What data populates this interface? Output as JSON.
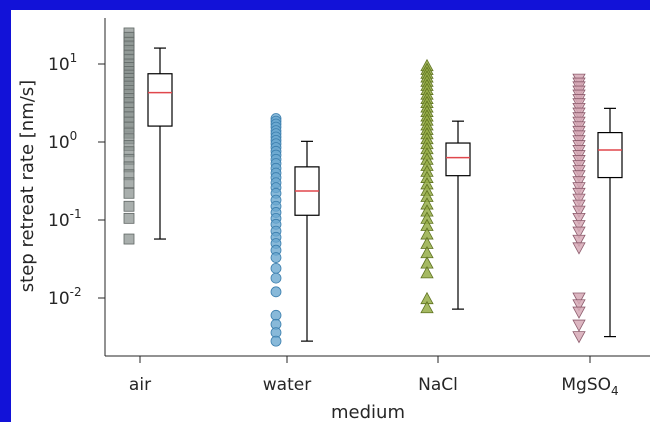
{
  "colors": {
    "frame": "#1212d8",
    "axis": "#262626",
    "median": "#e0474c",
    "air": "#8c9491",
    "water": "#6aa7cf",
    "nacl": "#95ad47",
    "mgso4": "#d6a9b6"
  },
  "chart_data": {
    "type": "box",
    "xlabel": "medium",
    "ylabel": "step retreat rate [nm/s]",
    "yscale": "log",
    "ylim": [
      0.002,
      40
    ],
    "y_ticks": [
      {
        "value": 0.01,
        "base": "10",
        "exp": "-2"
      },
      {
        "value": 0.1,
        "base": "10",
        "exp": "-1"
      },
      {
        "value": 1,
        "base": "10",
        "exp": "0"
      },
      {
        "value": 10,
        "base": "10",
        "exp": "1"
      }
    ],
    "categories": [
      {
        "label": "air",
        "label_sub": "",
        "label_tail": "",
        "marker": "square",
        "color_key": "air",
        "box": {
          "whisker_low": 0.057,
          "q1": 1.6,
          "median": 4.3,
          "q3": 7.5,
          "whisker_high": 16
        },
        "points": [
          25,
          22,
          19,
          17,
          15,
          13,
          11.5,
          10,
          9,
          8,
          7.2,
          6.5,
          5.8,
          5.2,
          4.6,
          4.1,
          3.6,
          3.2,
          2.8,
          2.4,
          2.1,
          1.8,
          1.55,
          1.3,
          1.1,
          0.9,
          0.75,
          0.6,
          0.48,
          0.38,
          0.3,
          0.22,
          0.15,
          0.105,
          0.057
        ]
      },
      {
        "label": "water",
        "label_sub": "",
        "label_tail": "",
        "marker": "circle",
        "color_key": "water",
        "box": {
          "whisker_low": 0.0028,
          "q1": 0.115,
          "median": 0.235,
          "q3": 0.48,
          "whisker_high": 1.02
        },
        "points": [
          2.0,
          1.85,
          1.7,
          1.55,
          1.4,
          1.28,
          1.16,
          1.05,
          0.95,
          0.85,
          0.76,
          0.68,
          0.6,
          0.53,
          0.46,
          0.4,
          0.35,
          0.3,
          0.26,
          0.22,
          0.18,
          0.15,
          0.125,
          0.105,
          0.088,
          0.072,
          0.06,
          0.05,
          0.041,
          0.033,
          0.024,
          0.018,
          0.012,
          0.006,
          0.0046,
          0.0036,
          0.0028
        ]
      },
      {
        "label": "NaCl",
        "label_sub": "",
        "label_tail": "",
        "marker": "triangle-up",
        "color_key": "nacl",
        "box": {
          "whisker_low": 0.0072,
          "q1": 0.37,
          "median": 0.63,
          "q3": 0.97,
          "whisker_high": 1.85
        },
        "points": [
          9.5,
          8.5,
          7.6,
          6.8,
          6.0,
          5.3,
          4.7,
          4.1,
          3.6,
          3.2,
          2.8,
          2.45,
          2.15,
          1.9,
          1.65,
          1.45,
          1.27,
          1.1,
          0.95,
          0.82,
          0.7,
          0.6,
          0.5,
          0.42,
          0.35,
          0.29,
          0.24,
          0.2,
          0.16,
          0.13,
          0.105,
          0.085,
          0.066,
          0.05,
          0.038,
          0.028,
          0.021,
          0.0098,
          0.0075
        ]
      },
      {
        "label": "MgSO",
        "label_sub": "4",
        "label_tail": "",
        "marker": "triangle-down",
        "color_key": "mgso4",
        "box": {
          "whisker_low": 0.0032,
          "q1": 0.35,
          "median": 0.79,
          "q3": 1.32,
          "whisker_high": 2.7
        },
        "points": [
          6.4,
          5.7,
          5.1,
          4.5,
          4.0,
          3.5,
          3.1,
          2.7,
          2.35,
          2.05,
          1.8,
          1.57,
          1.37,
          1.2,
          1.04,
          0.9,
          0.78,
          0.67,
          0.58,
          0.5,
          0.43,
          0.37,
          0.31,
          0.26,
          0.22,
          0.185,
          0.155,
          0.13,
          0.105,
          0.085,
          0.07,
          0.055,
          0.044,
          0.01,
          0.0082,
          0.0066,
          0.0045,
          0.0032
        ]
      }
    ]
  }
}
